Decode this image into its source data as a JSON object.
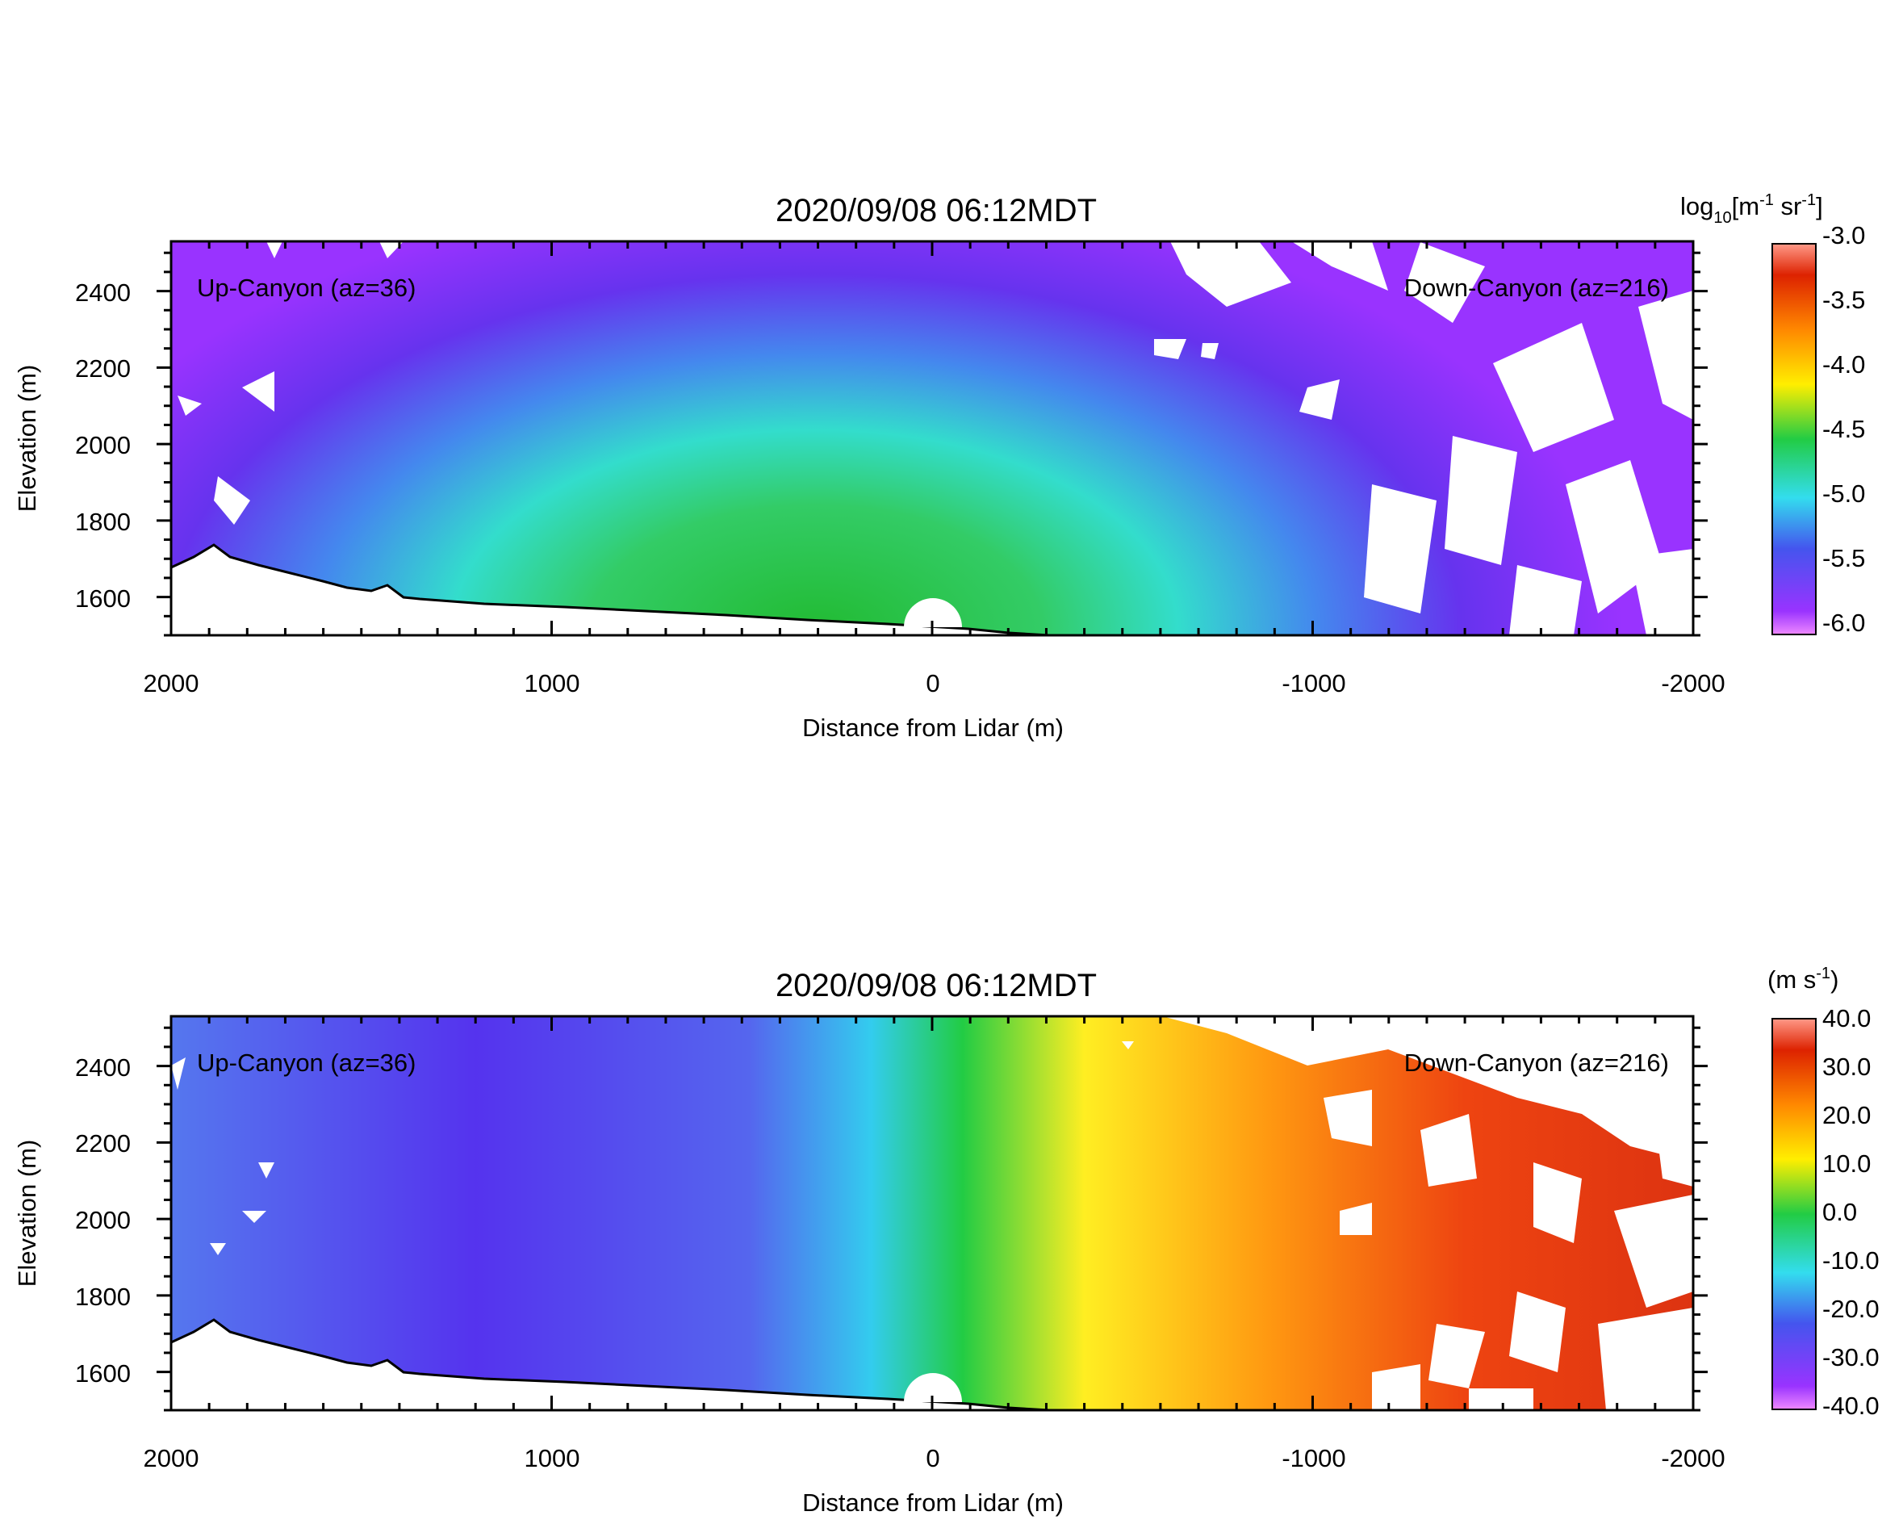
{
  "chart_data": [
    {
      "type": "heatmap",
      "title": "2020/09/08 06:12MDT",
      "xlabel": "Distance from Lidar (m)",
      "ylabel": "Elevation (m)",
      "xlim": [
        2000,
        -2000
      ],
      "ylim": [
        1500,
        2530
      ],
      "x_ticks": [
        2000,
        1000,
        0,
        -1000,
        -2000
      ],
      "y_ticks": [
        1600,
        1800,
        2000,
        2200,
        2400
      ],
      "annotations": {
        "left": "Up-Canyon (az=36)",
        "right": "Down-Canyon (az=216)"
      },
      "colorbar": {
        "label_main": "log",
        "label_sub": "10",
        "label_rest": "[m",
        "label_exp1": "-1",
        "label_mid": " sr",
        "label_exp2": "-1",
        "label_end": "]",
        "min": -6.0,
        "max": -3.0,
        "ticks": [
          "-3.0",
          "-3.5",
          "-4.0",
          "-4.5",
          "-5.0",
          "-5.5",
          "-6.0"
        ],
        "colors": [
          "#ee88ff",
          "#9933ff",
          "#4455ee",
          "#33ddee",
          "#22cc44",
          "#ffee00",
          "#ff8800",
          "#dd2200",
          "#ff9988"
        ]
      },
      "field_description_values": {
        "center_max": -4.5,
        "edge_min": -5.8
      }
    },
    {
      "type": "heatmap",
      "title": "2020/09/08 06:12MDT",
      "xlabel": "Distance from Lidar (m)",
      "ylabel": "Elevation (m)",
      "xlim": [
        2000,
        -2000
      ],
      "ylim": [
        1500,
        2530
      ],
      "x_ticks": [
        2000,
        1000,
        0,
        -1000,
        -2000
      ],
      "y_ticks": [
        1600,
        1800,
        2000,
        2200,
        2400
      ],
      "annotations": {
        "left": "Up-Canyon (az=36)",
        "right": "Down-Canyon (az=216)"
      },
      "colorbar": {
        "label_main": "(m s",
        "label_exp1": "-1",
        "label_end": ")",
        "min": -40.0,
        "max": 40.0,
        "ticks": [
          "40.0",
          "30.0",
          "20.0",
          "10.0",
          "0.0",
          "-10.0",
          "-20.0",
          "-30.0",
          "-40.0"
        ],
        "colors": [
          "#ee88ff",
          "#9933ff",
          "#4455ee",
          "#33ddee",
          "#22cc44",
          "#ffee00",
          "#ff8800",
          "#dd2200",
          "#ff9988"
        ]
      },
      "field_description_values": {
        "up_canyon_mean": -25.0,
        "down_canyon_mean": 25.0
      }
    }
  ]
}
